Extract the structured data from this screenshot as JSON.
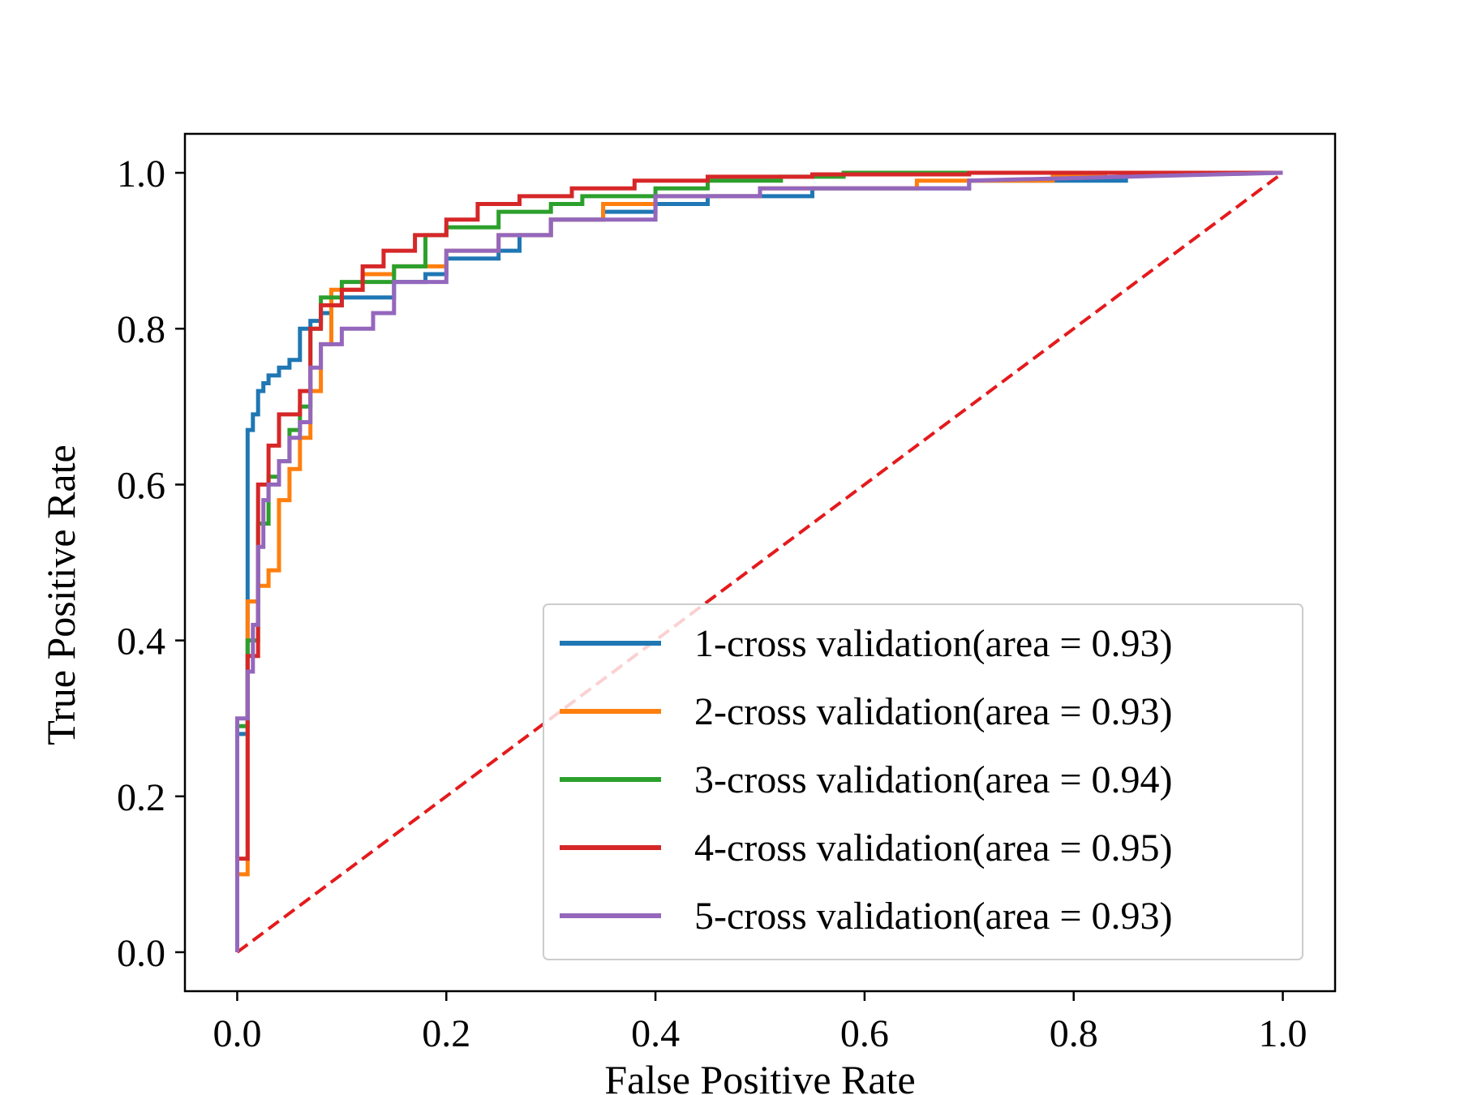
{
  "chart_data": {
    "type": "line",
    "title": "",
    "xlabel": "False Positive Rate",
    "ylabel": "True Positive Rate",
    "xlim": [
      -0.05,
      1.05
    ],
    "ylim": [
      -0.05,
      1.05
    ],
    "xticks": [
      "0.0",
      "0.2",
      "0.4",
      "0.6",
      "0.8",
      "1.0"
    ],
    "yticks": [
      "0.0",
      "0.2",
      "0.4",
      "0.6",
      "0.8",
      "1.0"
    ],
    "grid": false,
    "legend_position": "lower-right",
    "reference_line": {
      "style": "dashed",
      "color": "#e41a1c",
      "x": [
        0,
        1
      ],
      "y": [
        0,
        1
      ]
    },
    "series": [
      {
        "name": "1-cross validation(area = 0.93)",
        "color": "#1f77b4",
        "x": [
          0.0,
          0.0,
          0.01,
          0.01,
          0.015,
          0.015,
          0.02,
          0.02,
          0.025,
          0.025,
          0.03,
          0.03,
          0.04,
          0.04,
          0.05,
          0.05,
          0.06,
          0.06,
          0.07,
          0.07,
          0.08,
          0.08,
          0.09,
          0.09,
          0.1,
          0.1,
          0.15,
          0.15,
          0.18,
          0.18,
          0.2,
          0.2,
          0.25,
          0.25,
          0.27,
          0.27,
          0.3,
          0.3,
          0.35,
          0.35,
          0.4,
          0.4,
          0.45,
          0.45,
          0.55,
          0.55,
          0.7,
          0.7,
          0.85,
          0.85,
          1.0
        ],
        "y": [
          0.0,
          0.28,
          0.28,
          0.67,
          0.67,
          0.69,
          0.69,
          0.72,
          0.72,
          0.73,
          0.73,
          0.74,
          0.74,
          0.75,
          0.75,
          0.76,
          0.76,
          0.8,
          0.8,
          0.81,
          0.81,
          0.82,
          0.82,
          0.83,
          0.83,
          0.84,
          0.84,
          0.86,
          0.86,
          0.87,
          0.87,
          0.89,
          0.89,
          0.9,
          0.9,
          0.92,
          0.92,
          0.94,
          0.94,
          0.95,
          0.95,
          0.96,
          0.96,
          0.97,
          0.97,
          0.98,
          0.98,
          0.99,
          0.99,
          1.0,
          1.0
        ]
      },
      {
        "name": "2-cross validation(area = 0.93)",
        "color": "#ff7f0e",
        "x": [
          0.0,
          0.0,
          0.01,
          0.01,
          0.02,
          0.02,
          0.03,
          0.03,
          0.04,
          0.04,
          0.05,
          0.05,
          0.06,
          0.06,
          0.07,
          0.07,
          0.08,
          0.08,
          0.09,
          0.09,
          0.12,
          0.12,
          0.15,
          0.15,
          0.2,
          0.2,
          0.25,
          0.25,
          0.3,
          0.3,
          0.35,
          0.35,
          0.4,
          0.4,
          0.5,
          0.5,
          0.65,
          0.65,
          0.78,
          0.78,
          0.83,
          0.83,
          1.0
        ],
        "y": [
          0.0,
          0.1,
          0.1,
          0.45,
          0.45,
          0.47,
          0.47,
          0.49,
          0.49,
          0.58,
          0.58,
          0.62,
          0.62,
          0.66,
          0.66,
          0.72,
          0.72,
          0.78,
          0.78,
          0.85,
          0.85,
          0.87,
          0.87,
          0.88,
          0.88,
          0.9,
          0.9,
          0.92,
          0.92,
          0.94,
          0.94,
          0.96,
          0.96,
          0.97,
          0.97,
          0.98,
          0.98,
          0.99,
          0.99,
          0.995,
          0.995,
          1.0,
          1.0
        ]
      },
      {
        "name": "3-cross validation(area = 0.94)",
        "color": "#2ca02c",
        "x": [
          0.0,
          0.0,
          0.01,
          0.01,
          0.02,
          0.02,
          0.03,
          0.03,
          0.04,
          0.04,
          0.05,
          0.05,
          0.06,
          0.06,
          0.07,
          0.07,
          0.08,
          0.08,
          0.1,
          0.1,
          0.15,
          0.15,
          0.18,
          0.18,
          0.2,
          0.2,
          0.25,
          0.25,
          0.3,
          0.3,
          0.33,
          0.33,
          0.4,
          0.4,
          0.45,
          0.45,
          0.52,
          0.52,
          0.58,
          0.58,
          1.0
        ],
        "y": [
          0.0,
          0.29,
          0.29,
          0.4,
          0.4,
          0.55,
          0.55,
          0.61,
          0.61,
          0.63,
          0.63,
          0.67,
          0.67,
          0.7,
          0.7,
          0.8,
          0.8,
          0.84,
          0.84,
          0.86,
          0.86,
          0.88,
          0.88,
          0.92,
          0.92,
          0.93,
          0.93,
          0.95,
          0.95,
          0.96,
          0.96,
          0.97,
          0.97,
          0.98,
          0.98,
          0.99,
          0.99,
          0.995,
          0.995,
          1.0,
          1.0
        ]
      },
      {
        "name": "4-cross validation(area = 0.95)",
        "color": "#d62728",
        "x": [
          0.0,
          0.0,
          0.01,
          0.01,
          0.02,
          0.02,
          0.03,
          0.03,
          0.04,
          0.04,
          0.06,
          0.06,
          0.07,
          0.07,
          0.08,
          0.08,
          0.1,
          0.1,
          0.12,
          0.12,
          0.14,
          0.14,
          0.17,
          0.17,
          0.2,
          0.2,
          0.23,
          0.23,
          0.27,
          0.27,
          0.32,
          0.32,
          0.38,
          0.38,
          0.45,
          0.45,
          0.55,
          0.55,
          0.7,
          0.7,
          1.0
        ],
        "y": [
          0.0,
          0.12,
          0.12,
          0.38,
          0.38,
          0.6,
          0.6,
          0.65,
          0.65,
          0.69,
          0.69,
          0.72,
          0.72,
          0.8,
          0.8,
          0.83,
          0.83,
          0.85,
          0.85,
          0.88,
          0.88,
          0.9,
          0.9,
          0.92,
          0.92,
          0.94,
          0.94,
          0.96,
          0.96,
          0.97,
          0.97,
          0.98,
          0.98,
          0.99,
          0.99,
          0.995,
          0.995,
          0.998,
          0.998,
          1.0,
          1.0
        ]
      },
      {
        "name": "5-cross validation(area = 0.93)",
        "color": "#9467bd",
        "x": [
          0.0,
          0.0,
          0.01,
          0.01,
          0.015,
          0.015,
          0.02,
          0.02,
          0.025,
          0.025,
          0.03,
          0.03,
          0.04,
          0.04,
          0.05,
          0.05,
          0.06,
          0.06,
          0.07,
          0.07,
          0.08,
          0.08,
          0.1,
          0.1,
          0.13,
          0.13,
          0.15,
          0.15,
          0.2,
          0.2,
          0.25,
          0.25,
          0.3,
          0.3,
          0.4,
          0.4,
          0.5,
          0.5,
          0.7,
          0.7,
          1.0
        ],
        "y": [
          0.0,
          0.3,
          0.3,
          0.36,
          0.36,
          0.42,
          0.42,
          0.52,
          0.52,
          0.58,
          0.58,
          0.6,
          0.6,
          0.63,
          0.63,
          0.66,
          0.66,
          0.68,
          0.68,
          0.75,
          0.75,
          0.78,
          0.78,
          0.8,
          0.8,
          0.82,
          0.82,
          0.86,
          0.86,
          0.9,
          0.9,
          0.92,
          0.92,
          0.94,
          0.94,
          0.97,
          0.97,
          0.98,
          0.98,
          0.99,
          1.0
        ]
      }
    ]
  }
}
